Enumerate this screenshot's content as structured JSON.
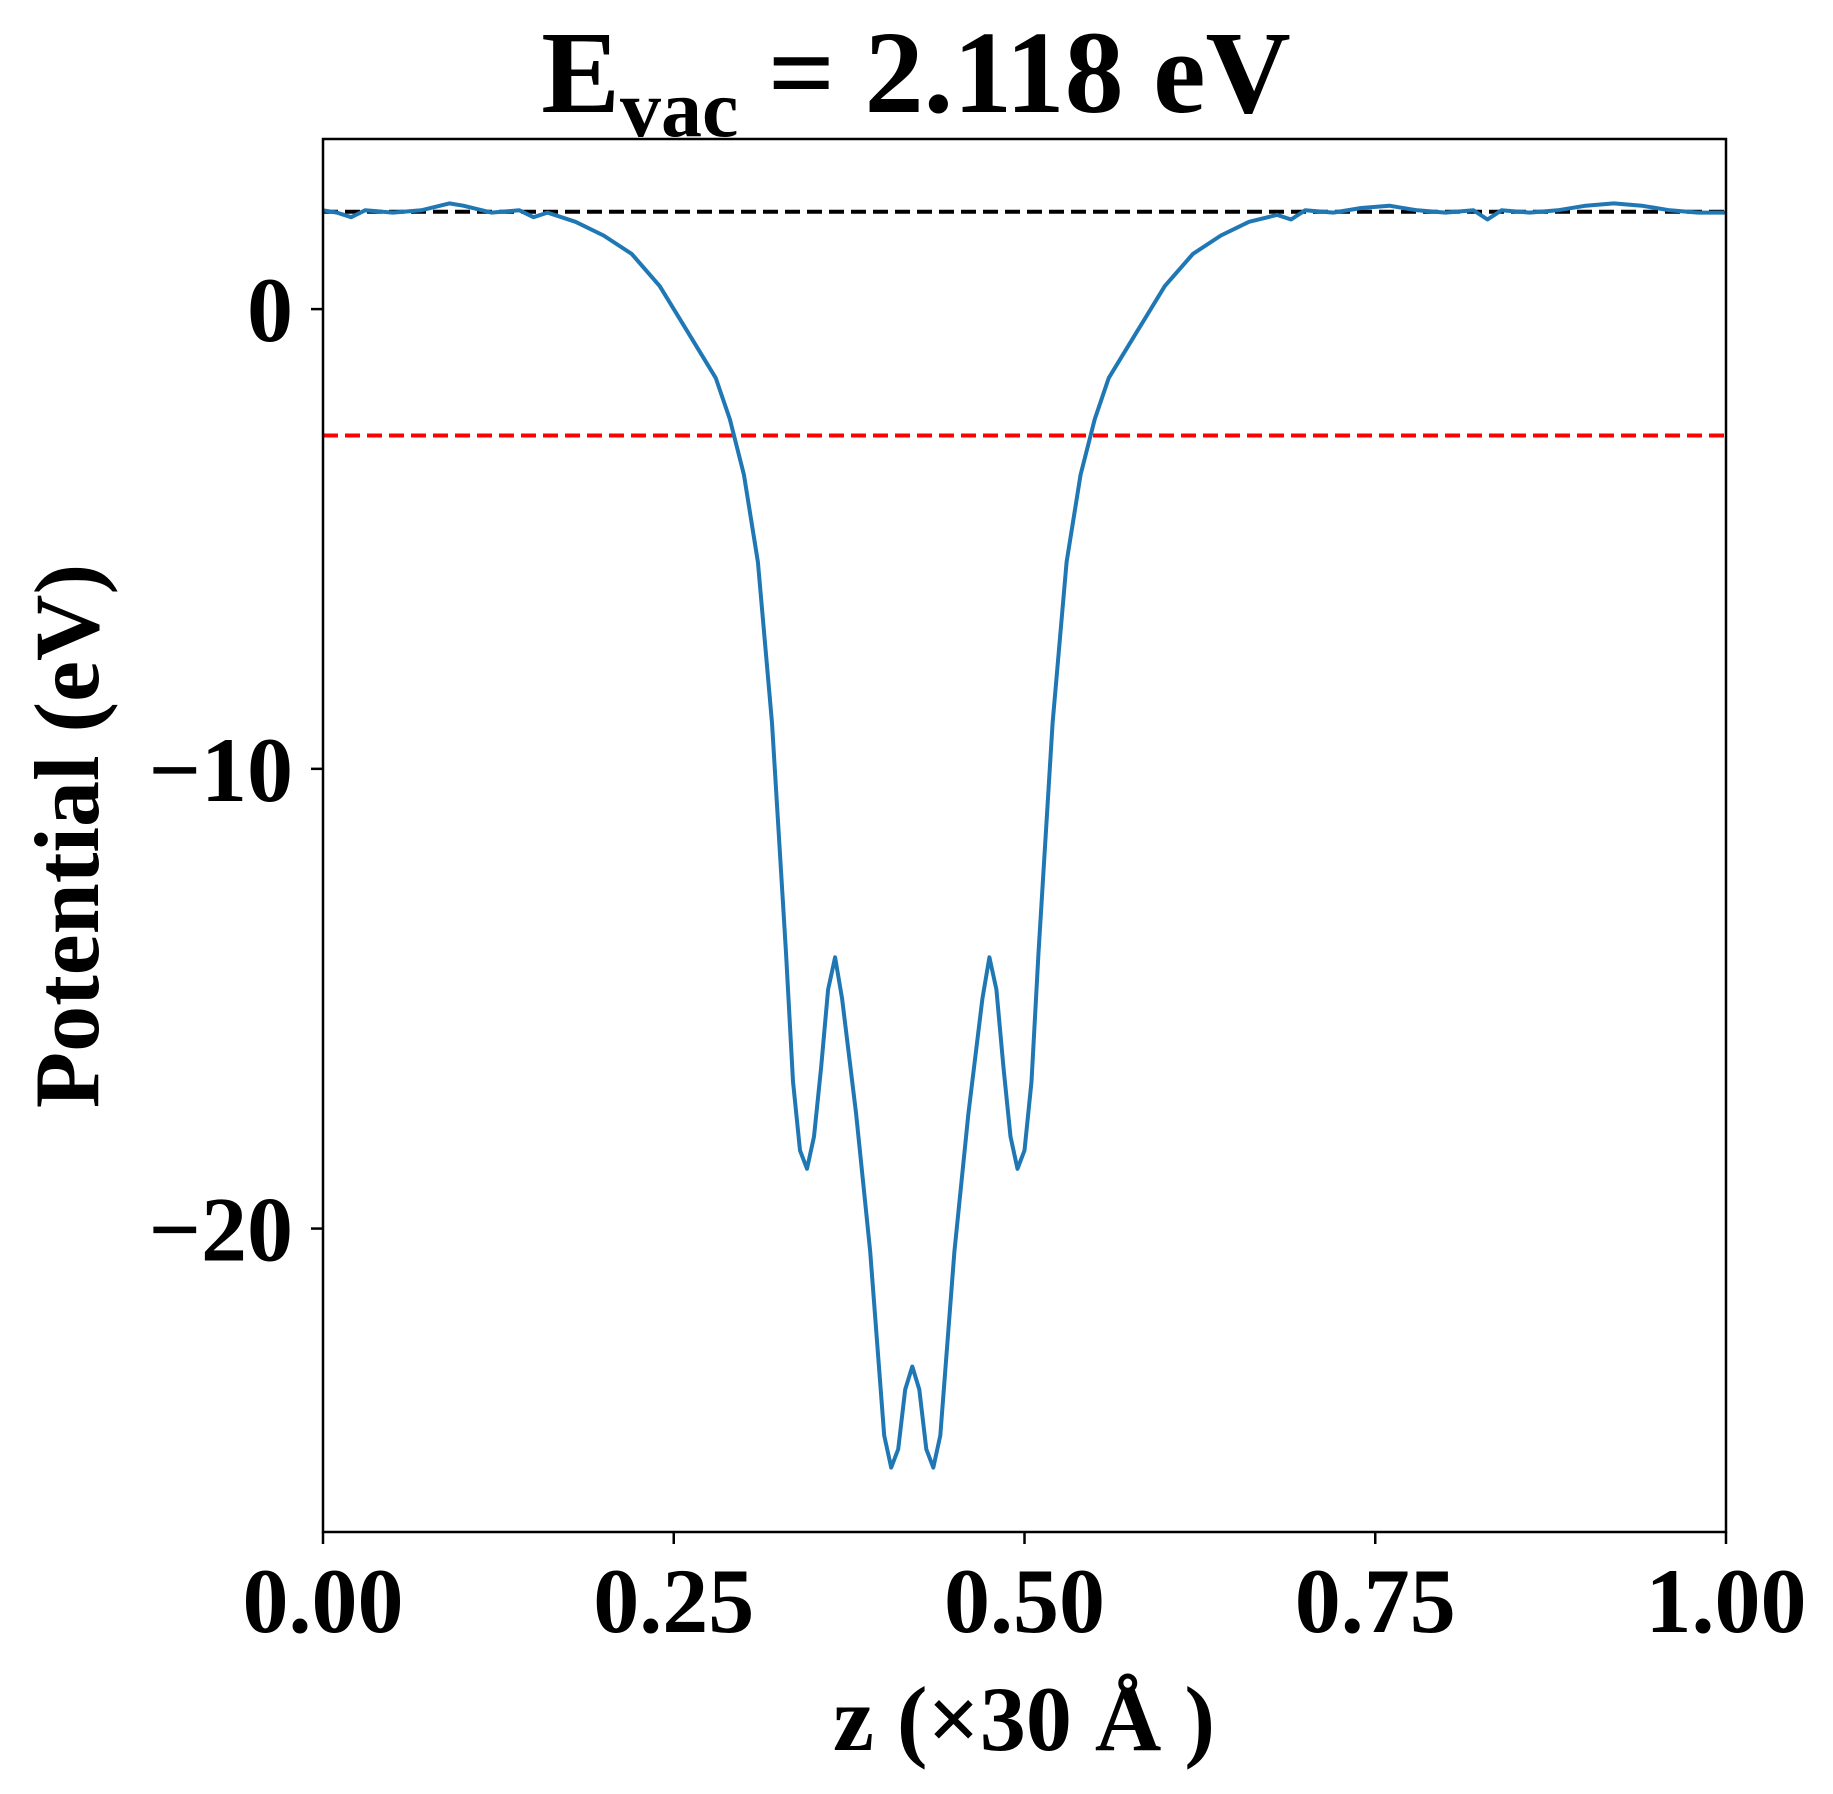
{
  "chart_data": {
    "type": "line",
    "title": {
      "main": "E",
      "subscript": "vac",
      "suffix": " = 2.118 eV"
    },
    "xlabel": "z (×30 Å )",
    "ylabel": "Potential (eV)",
    "xlim": [
      0.0,
      1.0
    ],
    "ylim": [
      -26.6,
      3.7
    ],
    "xticks": [
      {
        "value": 0.0,
        "label": "0.00"
      },
      {
        "value": 0.25,
        "label": "0.25"
      },
      {
        "value": 0.5,
        "label": "0.50"
      },
      {
        "value": 0.75,
        "label": "0.75"
      },
      {
        "value": 1.0,
        "label": "1.00"
      }
    ],
    "yticks": [
      {
        "value": 0,
        "label": "0"
      },
      {
        "value": -10,
        "label": "−10"
      },
      {
        "value": -20,
        "label": "−20"
      }
    ],
    "grid": false,
    "legend": "none",
    "reference_lines": [
      {
        "name": "vacuum-level",
        "y": 2.118,
        "color": "#000000",
        "style": "dashed"
      },
      {
        "name": "fermi-level",
        "y": -2.75,
        "color": "#ff0000",
        "style": "dashed"
      }
    ],
    "series": [
      {
        "color": "#1f77b4",
        "points": [
          [
            0.0,
            2.15
          ],
          [
            0.01,
            2.1
          ],
          [
            0.02,
            2.0
          ],
          [
            0.03,
            2.15
          ],
          [
            0.05,
            2.1
          ],
          [
            0.07,
            2.15
          ],
          [
            0.09,
            2.3
          ],
          [
            0.1,
            2.25
          ],
          [
            0.12,
            2.1
          ],
          [
            0.14,
            2.15
          ],
          [
            0.15,
            2.0
          ],
          [
            0.16,
            2.1
          ],
          [
            0.18,
            1.9
          ],
          [
            0.2,
            1.6
          ],
          [
            0.22,
            1.2
          ],
          [
            0.24,
            0.5
          ],
          [
            0.26,
            -0.5
          ],
          [
            0.28,
            -1.5
          ],
          [
            0.29,
            -2.4
          ],
          [
            0.3,
            -3.6
          ],
          [
            0.31,
            -5.5
          ],
          [
            0.32,
            -9.0
          ],
          [
            0.33,
            -14.0
          ],
          [
            0.335,
            -16.8
          ],
          [
            0.34,
            -18.3
          ],
          [
            0.345,
            -18.7
          ],
          [
            0.35,
            -18.0
          ],
          [
            0.355,
            -16.5
          ],
          [
            0.36,
            -14.8
          ],
          [
            0.365,
            -14.1
          ],
          [
            0.37,
            -15.0
          ],
          [
            0.38,
            -17.5
          ],
          [
            0.39,
            -20.5
          ],
          [
            0.4,
            -24.5
          ],
          [
            0.405,
            -25.2
          ],
          [
            0.41,
            -24.8
          ],
          [
            0.415,
            -23.5
          ],
          [
            0.42,
            -23.0
          ],
          [
            0.425,
            -23.5
          ],
          [
            0.43,
            -24.8
          ],
          [
            0.435,
            -25.2
          ],
          [
            0.44,
            -24.5
          ],
          [
            0.45,
            -20.5
          ],
          [
            0.46,
            -17.5
          ],
          [
            0.47,
            -15.0
          ],
          [
            0.475,
            -14.1
          ],
          [
            0.48,
            -14.8
          ],
          [
            0.485,
            -16.5
          ],
          [
            0.49,
            -18.0
          ],
          [
            0.495,
            -18.7
          ],
          [
            0.5,
            -18.3
          ],
          [
            0.505,
            -16.8
          ],
          [
            0.51,
            -14.0
          ],
          [
            0.52,
            -9.0
          ],
          [
            0.53,
            -5.5
          ],
          [
            0.54,
            -3.6
          ],
          [
            0.55,
            -2.4
          ],
          [
            0.56,
            -1.5
          ],
          [
            0.58,
            -0.5
          ],
          [
            0.6,
            0.5
          ],
          [
            0.62,
            1.2
          ],
          [
            0.64,
            1.6
          ],
          [
            0.66,
            1.9
          ],
          [
            0.68,
            2.05
          ],
          [
            0.69,
            1.95
          ],
          [
            0.7,
            2.15
          ],
          [
            0.72,
            2.1
          ],
          [
            0.74,
            2.2
          ],
          [
            0.76,
            2.25
          ],
          [
            0.78,
            2.15
          ],
          [
            0.8,
            2.1
          ],
          [
            0.82,
            2.15
          ],
          [
            0.83,
            1.95
          ],
          [
            0.84,
            2.15
          ],
          [
            0.86,
            2.1
          ],
          [
            0.88,
            2.15
          ],
          [
            0.9,
            2.25
          ],
          [
            0.92,
            2.3
          ],
          [
            0.94,
            2.25
          ],
          [
            0.96,
            2.15
          ],
          [
            0.98,
            2.1
          ],
          [
            1.0,
            2.1
          ]
        ]
      }
    ]
  }
}
